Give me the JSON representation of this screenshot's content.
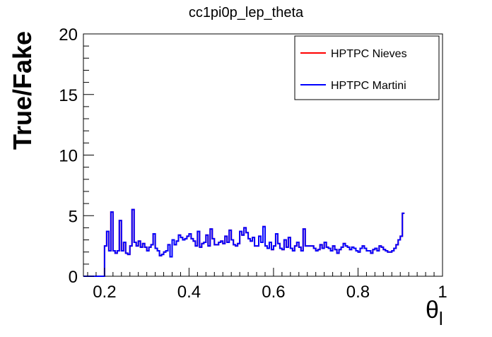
{
  "chart_data": {
    "type": "line",
    "style": "step-histogram",
    "title": "cc1pi0p_lep_theta",
    "xlabel": "θ",
    "xlabel_subscript": "l",
    "ylabel": "True/Fake",
    "xlim": [
      0.15,
      1.0
    ],
    "ylim": [
      0,
      20
    ],
    "x_ticks": [
      0.2,
      0.4,
      0.6,
      0.8,
      1.0
    ],
    "x_tick_labels": [
      "0.2",
      "0.4",
      "0.6",
      "0.8",
      "1"
    ],
    "y_ticks": [
      0,
      5,
      10,
      15,
      20
    ],
    "y_tick_labels": [
      "0",
      "5",
      "10",
      "15",
      "20"
    ],
    "grid": false,
    "legend_position": "top-right",
    "bin_edges_start": 0.15,
    "bin_width": 0.005,
    "series": [
      {
        "name": "HPTPC Nieves",
        "color": "#ff0000",
        "values": [
          0,
          0,
          0,
          0,
          0,
          0,
          0,
          0,
          0,
          0,
          2.5,
          3.7,
          2.1,
          5.3,
          2.1,
          1.9,
          2.1,
          4.6,
          2.1,
          2.8,
          1.9,
          1.8,
          2.5,
          5.5,
          2.8,
          2.5,
          2.9,
          2.4,
          2.7,
          2.4,
          2.1,
          2.4,
          2.6,
          3.5,
          2.3,
          2.1,
          1.7,
          1.8,
          2.0,
          2.1,
          2.6,
          1.6,
          3.0,
          2.6,
          2.9,
          3.4,
          3.2,
          3.0,
          3.1,
          3.3,
          3.5,
          3.1,
          2.9,
          2.5,
          3.7,
          2.4,
          2.7,
          2.8,
          3.4,
          2.5,
          3.9,
          3.1,
          2.6,
          2.6,
          2.8,
          2.9,
          2.7,
          3.3,
          2.8,
          3.8,
          3.0,
          2.6,
          2.5,
          2.7,
          3.7,
          3.4,
          4.0,
          3.6,
          3.1,
          2.9,
          3.2,
          2.5,
          2.5,
          3.3,
          2.8,
          4.1,
          2.5,
          2.3,
          2.8,
          2.2,
          2.5,
          3.5,
          2.7,
          2.3,
          2.2,
          3.0,
          2.4,
          3.2,
          2.3,
          2.1,
          2.5,
          2.8,
          2.4,
          2.1,
          3.9,
          2.5,
          2.5,
          2.5,
          2.5,
          2.3,
          2.1,
          2.2,
          2.6,
          2.3,
          2.8,
          2.4,
          2.3,
          2.1,
          2.5,
          2.2,
          1.9,
          2.2,
          2.4,
          2.7,
          2.5,
          2.4,
          2.2,
          2.4,
          2.3,
          2.1,
          2.0,
          2.3,
          2.5,
          2.3,
          2.1,
          2.1,
          1.9,
          2.2,
          2.3,
          2.1,
          2.5,
          2.4,
          2.2,
          2.1,
          2.0,
          2.0,
          2.1,
          2.3,
          2.6,
          3.0,
          3.3,
          5.2
        ]
      },
      {
        "name": "HPTPC Martini",
        "color": "#0000ff",
        "values": [
          0,
          0,
          0,
          0,
          0,
          0,
          0,
          0,
          0,
          0,
          2.5,
          3.7,
          2.1,
          5.3,
          2.1,
          1.9,
          2.1,
          4.6,
          2.1,
          2.8,
          1.9,
          1.8,
          2.5,
          5.5,
          2.8,
          2.5,
          2.9,
          2.4,
          2.7,
          2.4,
          2.1,
          2.4,
          2.6,
          3.5,
          2.3,
          2.1,
          1.7,
          1.8,
          2.0,
          2.1,
          2.6,
          1.6,
          3.0,
          2.6,
          2.9,
          3.4,
          3.2,
          3.0,
          3.1,
          3.3,
          3.5,
          3.1,
          2.9,
          2.5,
          3.7,
          2.4,
          2.7,
          2.8,
          3.4,
          2.5,
          3.9,
          3.1,
          2.6,
          2.6,
          2.8,
          2.9,
          2.7,
          3.3,
          2.8,
          3.8,
          3.0,
          2.6,
          2.5,
          2.7,
          3.7,
          3.4,
          4.0,
          3.6,
          3.1,
          2.9,
          3.2,
          2.5,
          2.5,
          3.3,
          2.8,
          4.1,
          2.5,
          2.3,
          2.8,
          2.2,
          2.5,
          3.5,
          2.7,
          2.3,
          2.2,
          3.0,
          2.4,
          3.2,
          2.3,
          2.1,
          2.5,
          2.8,
          2.4,
          2.1,
          3.9,
          2.5,
          2.5,
          2.5,
          2.5,
          2.3,
          2.1,
          2.2,
          2.6,
          2.3,
          2.8,
          2.4,
          2.3,
          2.1,
          2.5,
          2.2,
          1.9,
          2.2,
          2.4,
          2.7,
          2.5,
          2.4,
          2.2,
          2.4,
          2.3,
          2.1,
          2.0,
          2.3,
          2.5,
          2.3,
          2.1,
          2.1,
          1.9,
          2.2,
          2.3,
          2.1,
          2.5,
          2.4,
          2.2,
          2.1,
          2.0,
          2.0,
          2.1,
          2.3,
          2.6,
          3.0,
          3.3,
          5.2
        ]
      }
    ]
  }
}
